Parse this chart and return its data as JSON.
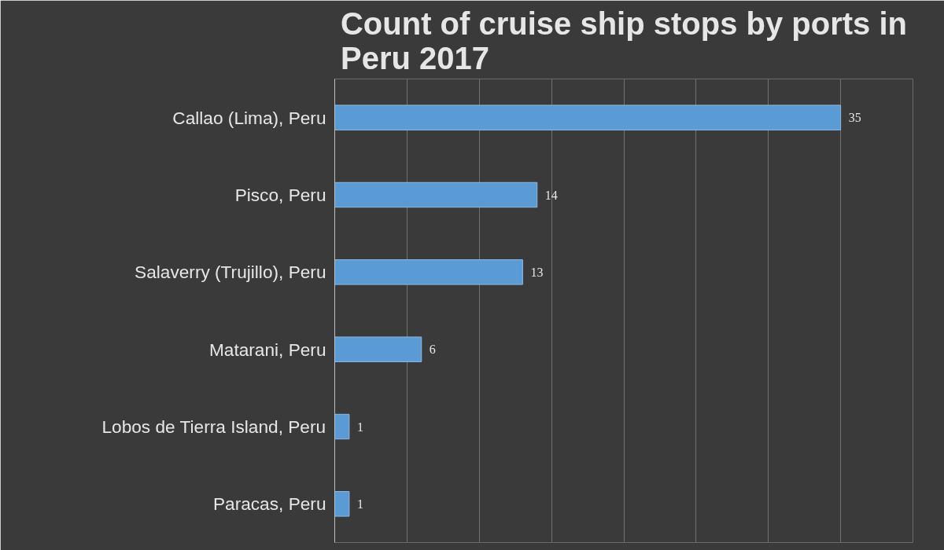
{
  "chart_data": {
    "type": "bar",
    "orientation": "horizontal",
    "title": "Count of cruise ship stops by ports in Peru 2017",
    "categories": [
      "Callao (Lima), Peru",
      "Pisco, Peru",
      "Salaverry (Trujillo), Peru",
      "Matarani, Peru",
      "Lobos de Tierra Island, Peru",
      "Paracas, Peru"
    ],
    "values": [
      35,
      14,
      13,
      6,
      1,
      1
    ],
    "color": "#5b9bd5",
    "xlim": [
      0,
      40
    ],
    "xticks": [
      {
        "value": 0,
        "label": null
      },
      {
        "value": 5,
        "label": null
      },
      {
        "value": 10,
        "label": null
      },
      {
        "value": 15,
        "label": null
      },
      {
        "value": 20,
        "label": null
      },
      {
        "value": 25,
        "label": null
      },
      {
        "value": 30,
        "label": null
      },
      {
        "value": 35,
        "label": null
      },
      {
        "value": 40,
        "label": null
      }
    ],
    "grid": "x",
    "tick_labels": "y",
    "data_labels": true
  }
}
